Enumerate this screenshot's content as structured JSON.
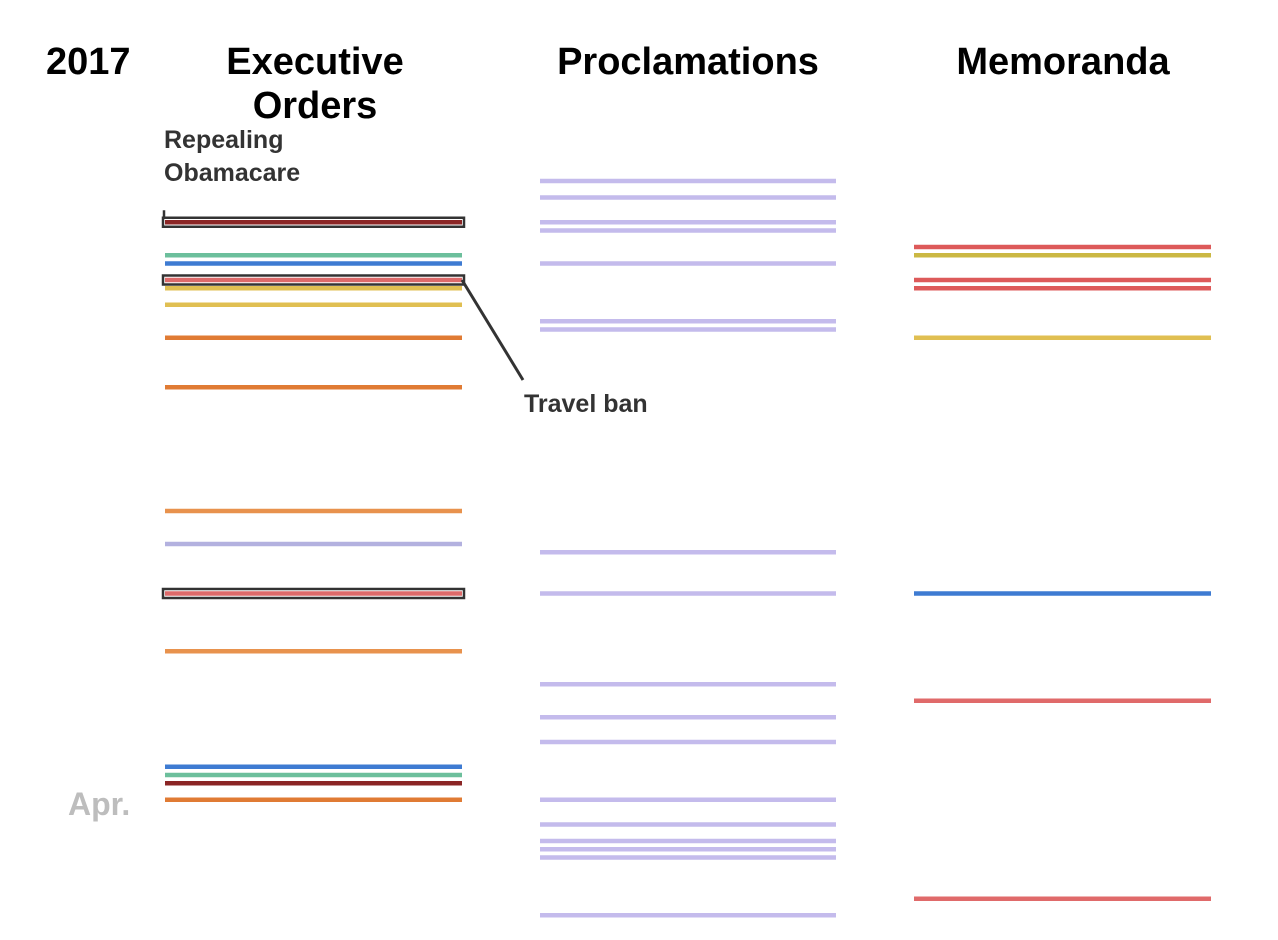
{
  "chart_data": {
    "type": "timeline",
    "year_label": "2017",
    "month_label": "Apr.",
    "columns": [
      {
        "key": "executive_orders",
        "title": "Executive Orders",
        "items": [
          {
            "day": 8,
            "color": "#8b2525"
          },
          {
            "day": 12,
            "color": "#6cbf9c"
          },
          {
            "day": 13,
            "color": "#3e7bd2"
          },
          {
            "day": 15,
            "color": "#dd6a6a"
          },
          {
            "day": 16,
            "color": "#e0bf52"
          },
          {
            "day": 18,
            "color": "#e0bf52"
          },
          {
            "day": 22,
            "color": "#e07b34"
          },
          {
            "day": 28,
            "color": "#e07b34"
          },
          {
            "day": 43,
            "color": "#e8924d"
          },
          {
            "day": 47,
            "color": "#b3b1df"
          },
          {
            "day": 53,
            "color": "#dd6a6a"
          },
          {
            "day": 60,
            "color": "#e8924d"
          },
          {
            "day": 74,
            "color": "#3e7bd2"
          },
          {
            "day": 75,
            "color": "#6cbf9c"
          },
          {
            "day": 76,
            "color": "#8b2525"
          },
          {
            "day": 78,
            "color": "#e07b34"
          }
        ]
      },
      {
        "key": "proclamations",
        "title": "Proclamations",
        "items": [
          {
            "day": 3,
            "color": "#c4bbec"
          },
          {
            "day": 5,
            "color": "#c4bbec"
          },
          {
            "day": 8,
            "color": "#c4bbec"
          },
          {
            "day": 9,
            "color": "#c4bbec"
          },
          {
            "day": 13,
            "color": "#c4bbec"
          },
          {
            "day": 20,
            "color": "#c4bbec"
          },
          {
            "day": 21,
            "color": "#c4bbec"
          },
          {
            "day": 48,
            "color": "#c4bbec"
          },
          {
            "day": 53,
            "color": "#c4bbec"
          },
          {
            "day": 64,
            "color": "#c4bbec"
          },
          {
            "day": 68,
            "color": "#c4bbec"
          },
          {
            "day": 71,
            "color": "#c4bbec"
          },
          {
            "day": 78,
            "color": "#c4bbec"
          },
          {
            "day": 81,
            "color": "#c4bbec"
          },
          {
            "day": 83,
            "color": "#c4bbec"
          },
          {
            "day": 84,
            "color": "#c4bbec"
          },
          {
            "day": 85,
            "color": "#c4bbec"
          },
          {
            "day": 92,
            "color": "#c4bbec"
          }
        ]
      },
      {
        "key": "memoranda",
        "title": "Memoranda",
        "items": [
          {
            "day": 11,
            "color": "#dd5a5a"
          },
          {
            "day": 12,
            "color": "#cbb843"
          },
          {
            "day": 15,
            "color": "#dd5a5a"
          },
          {
            "day": 16,
            "color": "#dd5a5a"
          },
          {
            "day": 22,
            "color": "#e0bf52"
          },
          {
            "day": 53,
            "color": "#3e7bd2"
          },
          {
            "day": 66,
            "color": "#e06a6a"
          },
          {
            "day": 90,
            "color": "#e06a6a"
          }
        ]
      }
    ],
    "highlights": [
      {
        "column": "executive_orders",
        "day": 8,
        "label": "Repealing Obamacare"
      },
      {
        "column": "executive_orders",
        "day": 15,
        "label": "Travel ban"
      },
      {
        "column": "executive_orders",
        "day": 53,
        "label": ""
      }
    ],
    "month_marks": [
      {
        "label": "Apr.",
        "day": 79
      }
    ]
  }
}
